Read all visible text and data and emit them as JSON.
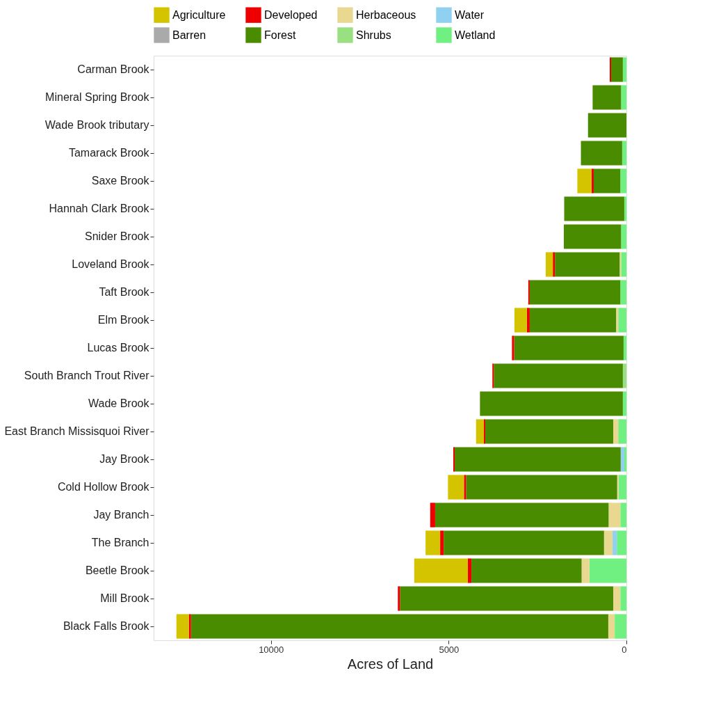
{
  "chart_data": {
    "type": "bar",
    "orientation": "horizontal",
    "stacked": true,
    "xlabel": "Acres of Land",
    "categories": [
      "Carman Brook",
      "Mineral Spring Brook",
      "Wade Brook tributary",
      "Tamarack Brook",
      "Saxe Brook",
      "Hannah Clark Brook",
      "Snider Brook",
      "Loveland Brook",
      "Taft Brook",
      "Elm Brook",
      "Lucas Brook",
      "South Branch Trout River",
      "Wade Brook",
      "East Branch Missisquoi River",
      "Jay Brook",
      "Cold Hollow Brook",
      "Jay Branch",
      "The Branch",
      "Beetle Brook",
      "Mill Brook",
      "Black Falls Brook"
    ],
    "series": [
      {
        "name": "Wetland",
        "color": "#70f080",
        "values": [
          100,
          150,
          null,
          120,
          170,
          60,
          150,
          150,
          170,
          230,
          80,
          null,
          100,
          230,
          60,
          220,
          170,
          270,
          1040,
          170,
          330
        ]
      },
      {
        "name": "Water",
        "color": "#90d0f0",
        "values": [
          null,
          null,
          null,
          null,
          null,
          null,
          null,
          null,
          null,
          null,
          null,
          null,
          null,
          null,
          100,
          null,
          null,
          120,
          null,
          null,
          null
        ]
      },
      {
        "name": "Shrubs",
        "color": "#98e080",
        "values": [
          null,
          null,
          null,
          null,
          null,
          null,
          null,
          null,
          null,
          null,
          null,
          100,
          null,
          null,
          null,
          null,
          null,
          null,
          null,
          null,
          null
        ]
      },
      {
        "name": "Herbaceous",
        "color": "#e8d890",
        "values": [
          null,
          null,
          null,
          null,
          null,
          null,
          null,
          40,
          null,
          60,
          null,
          null,
          null,
          140,
          null,
          40,
          330,
          240,
          220,
          200,
          180
        ]
      },
      {
        "name": "Forest",
        "color": "#4a8c00",
        "values": [
          330,
          800,
          1080,
          1160,
          750,
          1690,
          1610,
          1820,
          2550,
          2430,
          3080,
          3630,
          4020,
          3600,
          4670,
          4250,
          4880,
          4510,
          3100,
          6000,
          11740
        ]
      },
      {
        "name": "Developed",
        "color": "#ee0000",
        "values": [
          40,
          null,
          null,
          null,
          60,
          null,
          null,
          60,
          40,
          80,
          60,
          40,
          null,
          40,
          40,
          60,
          140,
          100,
          100,
          60,
          60
        ]
      },
      {
        "name": "Barren",
        "color": "#aaaaaa",
        "values": [
          null,
          null,
          null,
          null,
          null,
          null,
          null,
          null,
          null,
          null,
          null,
          null,
          null,
          null,
          null,
          null,
          null,
          null,
          null,
          null,
          null
        ]
      },
      {
        "name": "Agriculture",
        "color": "#d4c400",
        "values": [
          null,
          null,
          null,
          null,
          400,
          null,
          null,
          200,
          null,
          350,
          null,
          null,
          null,
          220,
          null,
          450,
          null,
          410,
          1510,
          null,
          350
        ]
      }
    ],
    "xlim": [
      13300,
      0
    ],
    "xticks": [
      10000,
      5000,
      0
    ],
    "grid": false,
    "legend": "top"
  }
}
